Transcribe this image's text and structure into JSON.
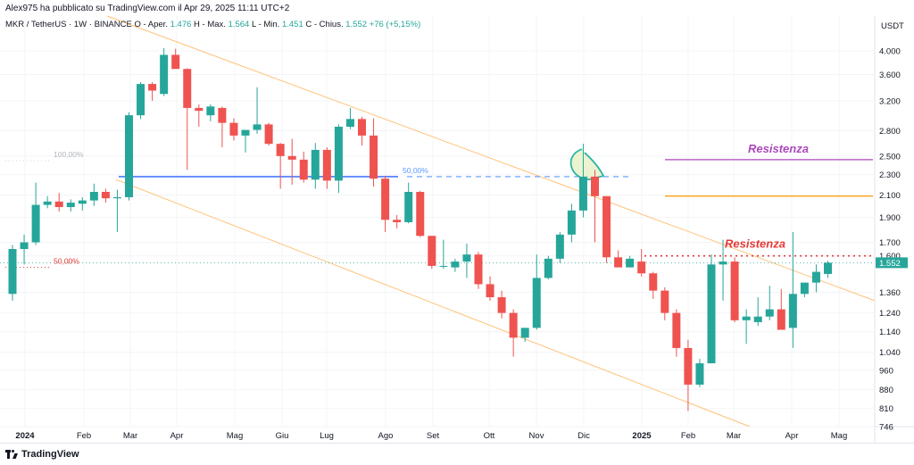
{
  "header": {
    "credit": "Alex975 ha pubblicato su TradingView.com il Apr 29, 2025 11:11 UTC+2",
    "symbol": "MKR / TetherUS · 1W · BINANCE",
    "open_label": "O - Aper.",
    "open_value": "1.476",
    "high_label": "H - Max.",
    "high_value": "1.564",
    "low_label": "L - Min.",
    "low_value": "1.451",
    "close_label": "C - Chius.",
    "close_value": "1.552",
    "change_value": "+76 (+5,15%)",
    "currency": "USDT"
  },
  "footer": {
    "brand": "TradingView"
  },
  "colors": {
    "up": "#26a69a",
    "down": "#ef5350",
    "channel": "#ffc27a",
    "support_line": "#2962ff",
    "resistance_purple": "#ab47bc",
    "resistance_orange": "#ff9800",
    "resistance_red": "#e53935"
  },
  "chart_data": {
    "type": "candlestick",
    "yscale": "log",
    "ylim": [
      746,
      4350
    ],
    "y_ticks": [
      "4.000",
      "3.600",
      "3.200",
      "2.800",
      "2.500",
      "2.300",
      "2.100",
      "1.900",
      "1.700",
      "1.600",
      "1.360",
      "1.240",
      "1.140",
      "1.040",
      "960",
      "880",
      "810",
      "746"
    ],
    "x_ticks": [
      "2024",
      "Feb",
      "Mar",
      "Apr",
      "Mag",
      "Giu",
      "Lug",
      "Ago",
      "Set",
      "Ott",
      "Nov",
      "Dic",
      "2025",
      "Feb",
      "Mar",
      "Apr",
      "Mag"
    ],
    "current_price_label": "1.552",
    "candles": [
      {
        "o": 1350,
        "h": 1680,
        "l": 1310,
        "c": 1650
      },
      {
        "o": 1650,
        "h": 1760,
        "l": 1540,
        "c": 1700
      },
      {
        "o": 1700,
        "h": 2220,
        "l": 1680,
        "c": 2010
      },
      {
        "o": 2010,
        "h": 2090,
        "l": 1980,
        "c": 2040
      },
      {
        "o": 2040,
        "h": 2120,
        "l": 1950,
        "c": 1990
      },
      {
        "o": 1990,
        "h": 2060,
        "l": 1950,
        "c": 2030
      },
      {
        "o": 2020,
        "h": 2080,
        "l": 1960,
        "c": 2050
      },
      {
        "o": 2050,
        "h": 2210,
        "l": 2000,
        "c": 2130
      },
      {
        "o": 2130,
        "h": 2160,
        "l": 2030,
        "c": 2070
      },
      {
        "o": 2070,
        "h": 2150,
        "l": 1780,
        "c": 2080
      },
      {
        "o": 2080,
        "h": 3040,
        "l": 2050,
        "c": 3000
      },
      {
        "o": 3000,
        "h": 3480,
        "l": 2950,
        "c": 3450
      },
      {
        "o": 3450,
        "h": 3480,
        "l": 3200,
        "c": 3350
      },
      {
        "o": 3300,
        "h": 4050,
        "l": 3270,
        "c": 3930
      },
      {
        "o": 3930,
        "h": 4040,
        "l": 3710,
        "c": 3690
      },
      {
        "o": 3690,
        "h": 3700,
        "l": 2350,
        "c": 3100
      },
      {
        "o": 3100,
        "h": 3150,
        "l": 2850,
        "c": 3060
      },
      {
        "o": 3000,
        "h": 3150,
        "l": 2920,
        "c": 3120
      },
      {
        "o": 3100,
        "h": 3120,
        "l": 2600,
        "c": 2900
      },
      {
        "o": 2900,
        "h": 2960,
        "l": 2680,
        "c": 2740
      },
      {
        "o": 2740,
        "h": 2780,
        "l": 2540,
        "c": 2810
      },
      {
        "o": 2810,
        "h": 3400,
        "l": 2760,
        "c": 2880
      },
      {
        "o": 2880,
        "h": 2900,
        "l": 2620,
        "c": 2640
      },
      {
        "o": 2640,
        "h": 2650,
        "l": 2160,
        "c": 2500
      },
      {
        "o": 2500,
        "h": 2700,
        "l": 2200,
        "c": 2460
      },
      {
        "o": 2460,
        "h": 2550,
        "l": 2220,
        "c": 2250
      },
      {
        "o": 2250,
        "h": 2650,
        "l": 2160,
        "c": 2570
      },
      {
        "o": 2570,
        "h": 2600,
        "l": 2160,
        "c": 2240
      },
      {
        "o": 2240,
        "h": 2880,
        "l": 2120,
        "c": 2850
      },
      {
        "o": 2850,
        "h": 3100,
        "l": 2820,
        "c": 2950
      },
      {
        "o": 2950,
        "h": 2980,
        "l": 2620,
        "c": 2740
      },
      {
        "o": 2740,
        "h": 2960,
        "l": 2180,
        "c": 2260
      },
      {
        "o": 2260,
        "h": 2290,
        "l": 1780,
        "c": 1880
      },
      {
        "o": 1880,
        "h": 1920,
        "l": 1810,
        "c": 1860
      },
      {
        "o": 1860,
        "h": 2220,
        "l": 1850,
        "c": 2130
      },
      {
        "o": 2130,
        "h": 2140,
        "l": 1740,
        "c": 1750
      },
      {
        "o": 1750,
        "h": 1750,
        "l": 1510,
        "c": 1530
      },
      {
        "o": 1530,
        "h": 1720,
        "l": 1510,
        "c": 1530
      },
      {
        "o": 1520,
        "h": 1580,
        "l": 1490,
        "c": 1560
      },
      {
        "o": 1560,
        "h": 1690,
        "l": 1450,
        "c": 1610
      },
      {
        "o": 1610,
        "h": 1630,
        "l": 1380,
        "c": 1410
      },
      {
        "o": 1410,
        "h": 1460,
        "l": 1310,
        "c": 1330
      },
      {
        "o": 1330,
        "h": 1370,
        "l": 1210,
        "c": 1240
      },
      {
        "o": 1240,
        "h": 1260,
        "l": 1020,
        "c": 1110
      },
      {
        "o": 1110,
        "h": 1160,
        "l": 1090,
        "c": 1160
      },
      {
        "o": 1160,
        "h": 1610,
        "l": 1150,
        "c": 1450
      },
      {
        "o": 1450,
        "h": 1600,
        "l": 1440,
        "c": 1580
      },
      {
        "o": 1580,
        "h": 1780,
        "l": 1550,
        "c": 1760
      },
      {
        "o": 1760,
        "h": 2020,
        "l": 1700,
        "c": 1960
      },
      {
        "o": 1960,
        "h": 2640,
        "l": 1900,
        "c": 2280
      },
      {
        "o": 2280,
        "h": 2350,
        "l": 1700,
        "c": 2090
      },
      {
        "o": 2090,
        "h": 2090,
        "l": 1550,
        "c": 1590
      },
      {
        "o": 1590,
        "h": 1640,
        "l": 1520,
        "c": 1520
      },
      {
        "o": 1520,
        "h": 1600,
        "l": 1520,
        "c": 1580
      },
      {
        "o": 1560,
        "h": 1650,
        "l": 1460,
        "c": 1480
      },
      {
        "o": 1480,
        "h": 1490,
        "l": 1320,
        "c": 1370
      },
      {
        "o": 1370,
        "h": 1390,
        "l": 1200,
        "c": 1240
      },
      {
        "o": 1240,
        "h": 1260,
        "l": 1020,
        "c": 1060
      },
      {
        "o": 1060,
        "h": 1100,
        "l": 800,
        "c": 900
      },
      {
        "o": 900,
        "h": 1010,
        "l": 890,
        "c": 990
      },
      {
        "o": 990,
        "h": 1610,
        "l": 990,
        "c": 1540
      },
      {
        "o": 1540,
        "h": 1720,
        "l": 1310,
        "c": 1560
      },
      {
        "o": 1560,
        "h": 1590,
        "l": 1190,
        "c": 1200
      },
      {
        "o": 1200,
        "h": 1260,
        "l": 1080,
        "c": 1220
      },
      {
        "o": 1190,
        "h": 1330,
        "l": 1170,
        "c": 1220
      },
      {
        "o": 1220,
        "h": 1400,
        "l": 1200,
        "c": 1260
      },
      {
        "o": 1260,
        "h": 1380,
        "l": 1150,
        "c": 1150
      },
      {
        "o": 1160,
        "h": 1780,
        "l": 1060,
        "c": 1350
      },
      {
        "o": 1350,
        "h": 1420,
        "l": 1330,
        "c": 1420
      },
      {
        "o": 1420,
        "h": 1540,
        "l": 1360,
        "c": 1490
      },
      {
        "o": 1476,
        "h": 1564,
        "l": 1451,
        "c": 1552
      }
    ],
    "annotations": {
      "fib_left_upper": "100,00%",
      "fib_left_lower": "50,00%",
      "fib_mid": "50,00%",
      "resistance_upper": "Resistenza",
      "resistance_lower": "Resistenza"
    }
  }
}
